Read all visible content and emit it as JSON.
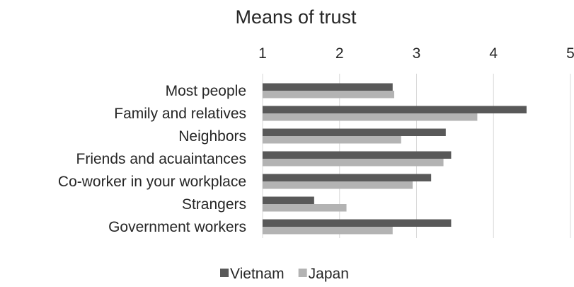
{
  "chart_data": {
    "type": "bar",
    "orientation": "horizontal",
    "title": "Means of trust",
    "xlabel": "",
    "ylabel": "",
    "xlim": [
      1,
      5
    ],
    "xticks": [
      1,
      2,
      3,
      4,
      5
    ],
    "grid": true,
    "legend_position": "bottom",
    "categories": [
      "Most people",
      "Family and relatives",
      "Neighbors",
      "Friends and acuaintances",
      "Co-worker in your workplace",
      "Strangers",
      "Government workers"
    ],
    "series": [
      {
        "name": "Vietnam",
        "color": "#595959",
        "values": [
          2.69,
          4.43,
          3.38,
          3.45,
          3.19,
          1.67,
          3.45
        ]
      },
      {
        "name": "Japan",
        "color": "#b3b3b3",
        "values": [
          2.71,
          3.79,
          2.8,
          3.35,
          2.95,
          2.09,
          2.69
        ]
      }
    ]
  }
}
